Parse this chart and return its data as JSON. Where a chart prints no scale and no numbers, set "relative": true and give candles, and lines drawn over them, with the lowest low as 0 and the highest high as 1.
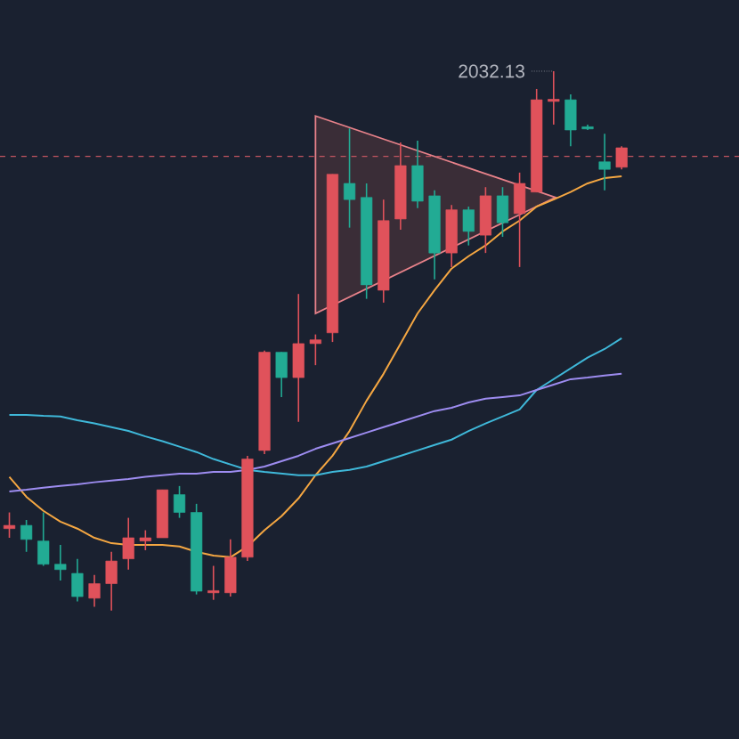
{
  "chart_data": {
    "type": "candlestick",
    "relative": true,
    "marker": "none",
    "categories": [
      null,
      null,
      null,
      null,
      null,
      null,
      null,
      null,
      null,
      null,
      null,
      null,
      null,
      null,
      null,
      null,
      null,
      null,
      null,
      null,
      null,
      null,
      null,
      null,
      null,
      null,
      null,
      null,
      null,
      null,
      null,
      null,
      null,
      null,
      null,
      null,
      null
    ],
    "ohlc": [
      [
        0.152,
        0.182,
        0.135,
        0.158
      ],
      [
        0.158,
        0.168,
        0.109,
        0.132
      ],
      [
        0.129,
        0.182,
        0.083,
        0.086
      ],
      [
        0.086,
        0.122,
        0.056,
        0.076
      ],
      [
        0.069,
        0.096,
        0.017,
        0.026
      ],
      [
        0.023,
        0.066,
        0.007,
        0.05
      ],
      [
        0.05,
        0.109,
        0,
        0.092
      ],
      [
        0.096,
        0.172,
        0.076,
        0.135
      ],
      [
        0.129,
        0.149,
        0.112,
        0.135
      ],
      [
        0.135,
        0.224,
        0.135,
        0.224
      ],
      [
        0.215,
        0.231,
        0.172,
        0.182
      ],
      [
        0.182,
        0.198,
        0.03,
        0.036
      ],
      [
        0.033,
        0.083,
        0.02,
        0.036
      ],
      [
        0.033,
        0.132,
        0.026,
        0.099
      ],
      [
        0.099,
        0.287,
        0.092,
        0.281
      ],
      [
        0.297,
        0.482,
        0.29,
        0.479
      ],
      [
        0.479,
        0.479,
        0.396,
        0.432
      ],
      [
        0.432,
        0.587,
        0.35,
        0.495
      ],
      [
        0.495,
        0.512,
        0.455,
        0.502
      ],
      [
        0.515,
        0.809,
        0.498,
        0.809
      ],
      [
        0.792,
        0.894,
        0.71,
        0.762
      ],
      [
        0.766,
        0.792,
        0.578,
        0.604
      ],
      [
        0.594,
        0.762,
        0.571,
        0.723
      ],
      [
        0.726,
        0.868,
        0.706,
        0.825
      ],
      [
        0.825,
        0.871,
        0.746,
        0.759
      ],
      [
        0.769,
        0.779,
        0.614,
        0.663
      ],
      [
        0.663,
        0.752,
        0.637,
        0.743
      ],
      [
        0.743,
        0.749,
        0.677,
        0.703
      ],
      [
        0.696,
        0.785,
        0.663,
        0.769
      ],
      [
        0.769,
        0.785,
        0.693,
        0.719
      ],
      [
        0.736,
        0.812,
        0.637,
        0.792
      ],
      [
        0.776,
        0.967,
        0.776,
        0.947
      ],
      [
        0.944,
        1,
        0.901,
        0.947
      ],
      [
        0.947,
        0.957,
        0.861,
        0.891
      ],
      [
        0.894,
        0.901,
        0.891,
        0.893
      ],
      [
        0.832,
        0.884,
        0.779,
        0.818
      ],
      [
        0.822,
        0.861,
        0.818,
        0.858
      ]
    ],
    "colors": [
      "#e0525b",
      "#22ab94",
      "#22ab94",
      "#22ab94",
      "#22ab94",
      "#e0525b",
      "#e0525b",
      "#e0525b",
      "#e0525b",
      "#e0525b",
      "#22ab94",
      "#22ab94",
      "#e0525b",
      "#e0525b",
      "#e0525b",
      "#e0525b",
      "#22ab94",
      "#e0525b",
      "#e0525b",
      "#e0525b",
      "#22ab94",
      "#22ab94",
      "#e0525b",
      "#e0525b",
      "#22ab94",
      "#22ab94",
      "#e0525b",
      "#22ab94",
      "#e0525b",
      "#22ab94",
      "#e0525b",
      "#e0525b",
      "#e0525b",
      "#22ab94",
      "#22ab94",
      "#22ab94",
      "#e0525b"
    ],
    "series": [
      {
        "type": "line",
        "color": "#f5a742",
        "values": [
          0.248,
          0.211,
          0.185,
          0.165,
          0.152,
          0.135,
          0.125,
          0.122,
          0.122,
          0.122,
          0.119,
          0.109,
          0.102,
          0.099,
          0.119,
          0.149,
          0.175,
          0.208,
          0.251,
          0.287,
          0.333,
          0.389,
          0.439,
          0.495,
          0.551,
          0.594,
          0.634,
          0.657,
          0.677,
          0.703,
          0.723,
          0.749,
          0.762,
          0.776,
          0.792,
          0.802,
          0.805
        ]
      },
      {
        "type": "line",
        "color": "#3fb8d9",
        "values": [
          0.363,
          0.363,
          0.361,
          0.36,
          0.353,
          0.347,
          0.34,
          0.333,
          0.323,
          0.314,
          0.304,
          0.294,
          0.281,
          0.271,
          0.261,
          0.257,
          0.254,
          0.251,
          0.251,
          0.257,
          0.261,
          0.267,
          0.277,
          0.287,
          0.297,
          0.307,
          0.317,
          0.333,
          0.347,
          0.36,
          0.373,
          0.409,
          0.429,
          0.449,
          0.469,
          0.485,
          0.505
        ]
      },
      {
        "type": "line",
        "color": "#9d8cf0",
        "values": [
          0.221,
          0.224,
          0.228,
          0.231,
          0.234,
          0.238,
          0.241,
          0.244,
          0.248,
          0.251,
          0.254,
          0.254,
          0.257,
          0.257,
          0.261,
          0.267,
          0.277,
          0.287,
          0.3,
          0.31,
          0.32,
          0.33,
          0.34,
          0.35,
          0.36,
          0.37,
          0.376,
          0.386,
          0.393,
          0.396,
          0.399,
          0.409,
          0.419,
          0.429,
          0.432,
          0.436,
          0.439
        ]
      }
    ],
    "ref_lines": [
      {
        "axis": "y",
        "value": 0.842,
        "color": "#c25560",
        "line_style": "dashed"
      }
    ],
    "annotations": [
      "2032.13"
    ]
  }
}
